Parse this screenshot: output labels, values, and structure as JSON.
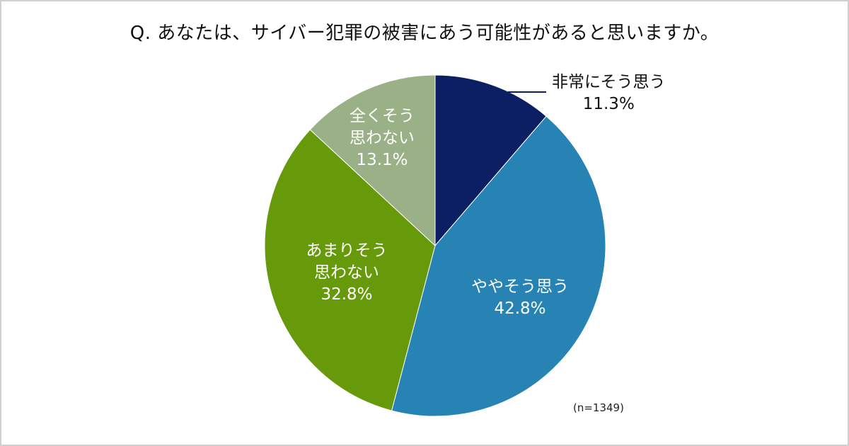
{
  "title": "Q. あなたは、サイバー犯罪の被害にあう可能性があると思いますか。",
  "sample_note": "(n=1349)",
  "slices": [
    {
      "line1": "非常にそう思う",
      "line2": "",
      "pct": "11.3%",
      "color": "#0c1f62"
    },
    {
      "line1": "ややそう思う",
      "line2": "",
      "pct": "42.8%",
      "color": "#2683b4"
    },
    {
      "line1": "あまりそう",
      "line2": "思わない",
      "pct": "32.8%",
      "color": "#669a0b"
    },
    {
      "line1": "全くそう",
      "line2": "思わない",
      "pct": "13.1%",
      "color": "#9ab086"
    }
  ],
  "chart_data": {
    "type": "pie",
    "title": "Q. あなたは、サイバー犯罪の被害にあう可能性があると思いますか。",
    "categories": [
      "非常にそう思う",
      "ややそう思う",
      "あまりそう思わない",
      "全くそう思わない"
    ],
    "values": [
      11.3,
      42.8,
      32.8,
      13.1
    ],
    "unit": "%",
    "colors": [
      "#0c1f62",
      "#2683b4",
      "#669a0b",
      "#9ab086"
    ],
    "start_angle": "12 o'clock, clockwise",
    "annotation": "(n=1349)",
    "legend": "none (direct labels)"
  }
}
